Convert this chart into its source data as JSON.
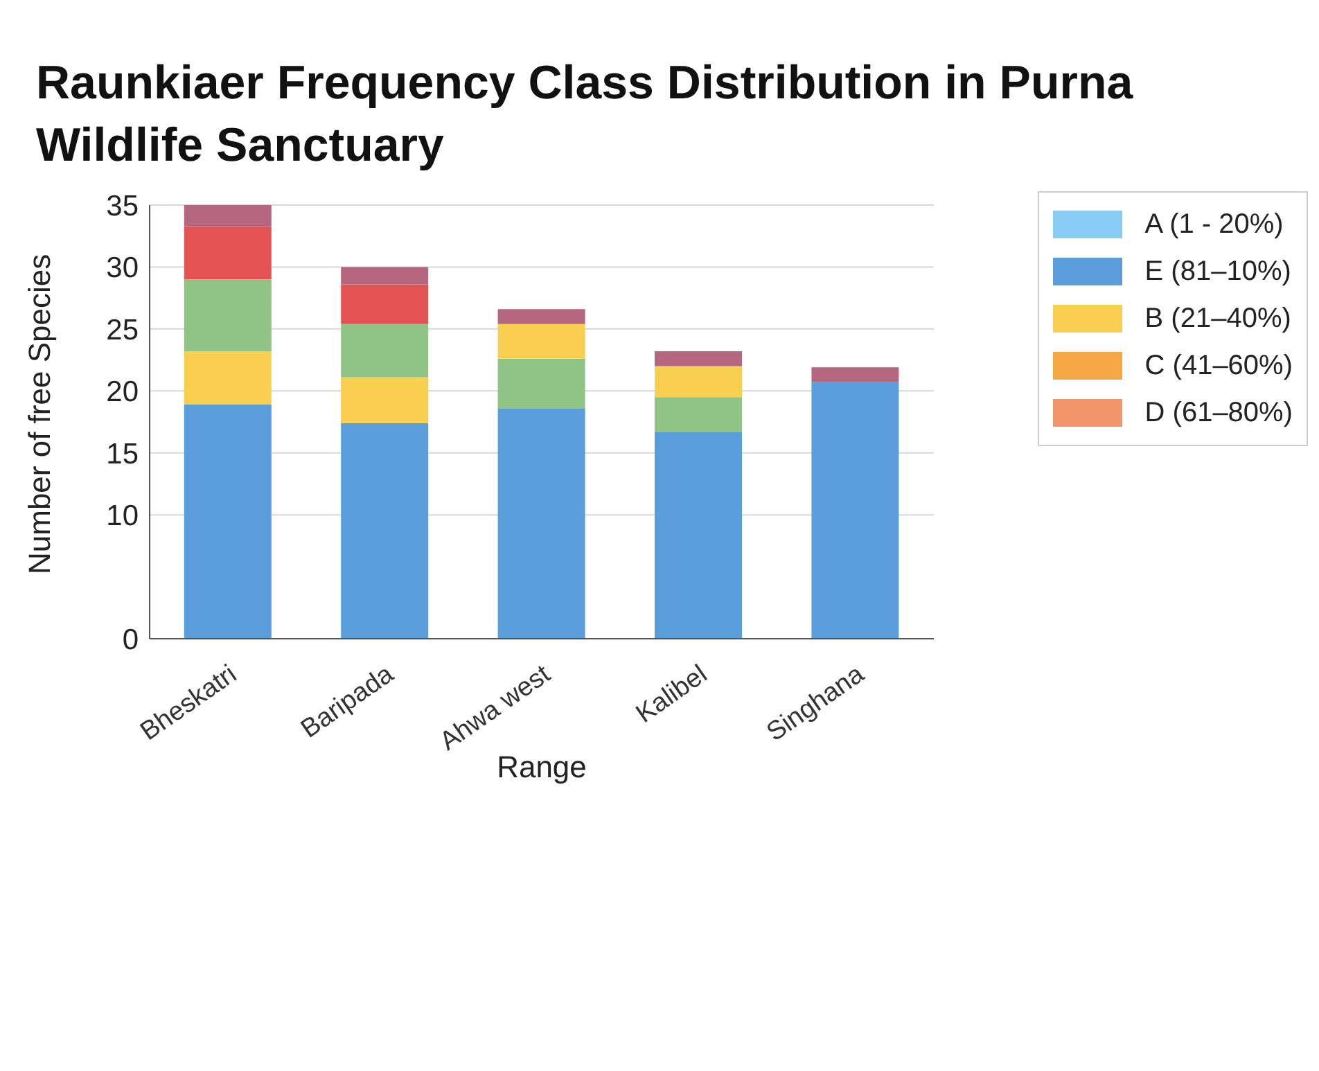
{
  "chart_data": {
    "type": "bar",
    "stacked": true,
    "title": "Raunkiaer Frequency Class Distribution in Purna Wildlife Sanctuary",
    "xlabel": "Range",
    "ylabel": "Number of free Species",
    "categories": [
      "Bheskatri",
      "Baripada",
      "Ahwa west",
      "Kalibel",
      "Singhana"
    ],
    "series": [
      {
        "name": "A (1 - 20%)",
        "color": "#87cdf3",
        "values": [
          null,
          null,
          null,
          null,
          null
        ]
      },
      {
        "name": "E (81–10%)",
        "color": "#5a9fdb",
        "values": [
          18.9,
          17.4,
          18.6,
          16.7,
          20.7
        ]
      },
      {
        "color": "#8fc485",
        "values": [
          null,
          null,
          4.0,
          2.8,
          null
        ]
      },
      {
        "name": "B (21–40%)",
        "color": "#f9cf4f",
        "values": [
          4.3,
          3.7,
          2.8,
          2.5,
          null
        ]
      },
      {
        "color": "#8fc485",
        "values": [
          5.8,
          4.3,
          null,
          null,
          null
        ]
      },
      {
        "name": "C (41–60%)",
        "color": "#f5a944",
        "values": [
          null,
          null,
          null,
          null,
          null
        ]
      },
      {
        "color": "#e35353",
        "values": [
          4.3,
          3.2,
          null,
          null,
          null
        ]
      },
      {
        "name": "D (61–80%)",
        "color": "#f3956b",
        "values": [
          null,
          null,
          null,
          null,
          null
        ]
      },
      {
        "color": "#b5677f",
        "values": [
          1.7,
          1.4,
          1.2,
          1.2,
          1.2
        ]
      }
    ],
    "ylim": [
      0,
      35
    ],
    "yticks": [
      0,
      10,
      15,
      20,
      25,
      30,
      35
    ],
    "grid": "y",
    "legend": "top right"
  }
}
